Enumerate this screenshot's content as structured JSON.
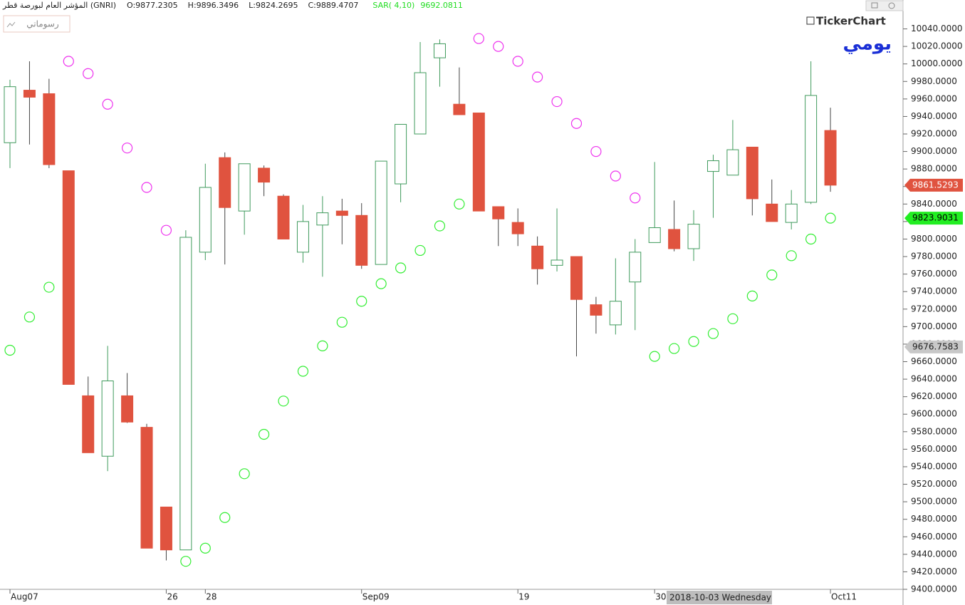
{
  "header": {
    "index_name": "المؤشر العام لبورصة قطر (GNRI)",
    "open_label": "O:",
    "high_label": "H:",
    "low_label": "L:",
    "close_label": "C:"
  },
  "toolbar": {
    "drawings_button": "رسوماتي",
    "logo": "TickerChart",
    "period": "يومي"
  },
  "chart_data": {
    "type": "candlestick",
    "categories": [
      "Aug07",
      null,
      null,
      null,
      null,
      null,
      null,
      null,
      "26",
      null,
      "28",
      null,
      null,
      null,
      null,
      null,
      null,
      null,
      "Sep09",
      null,
      null,
      null,
      null,
      null,
      null,
      null,
      "19",
      null,
      null,
      null,
      null,
      null,
      null,
      "30",
      null,
      null,
      null,
      null,
      null,
      null,
      null,
      null,
      "Oct11"
    ],
    "open": [
      9910,
      9970,
      9966,
      9878,
      9621,
      9552,
      9621,
      9585,
      9494,
      9445,
      9785,
      9893,
      9832,
      9881,
      9849,
      9785,
      9816,
      9832,
      9827,
      9771,
      9863,
      9920,
      10007,
      9954,
      9944,
      9837,
      9819,
      9792,
      9770,
      9780,
      9725,
      9702,
      9751,
      9796,
      9811,
      9789,
      9877.2305,
      9873,
      9905,
      9840,
      9819,
      9842,
      9924
    ],
    "high": [
      9982,
      10003,
      9983,
      9878,
      9643,
      9678,
      9647,
      9589,
      9494,
      9810,
      9886,
      9899,
      9886,
      9884,
      9851,
      9839,
      9849,
      9846,
      9841,
      9889,
      9931,
      10025,
      10028,
      9996,
      9944,
      9837,
      9835,
      9803,
      9835,
      9780,
      9734,
      9778,
      9800,
      9888,
      9844,
      9833,
      9896.3496,
      9936,
      9905,
      9868,
      9856,
      10003,
      9950
    ],
    "low": [
      9881,
      9908,
      9881,
      9634,
      9556,
      9535,
      9590,
      9447,
      9433,
      9445,
      9776,
      9771,
      9805,
      9849,
      9800,
      9773,
      9757,
      9794,
      9766,
      9771,
      9842,
      9920,
      9974,
      9942,
      9832,
      9792,
      9792,
      9748,
      9763,
      9666,
      9692,
      9691,
      9696,
      9796,
      9786,
      9775,
      9824.2695,
      9873,
      9827,
      9820,
      9811,
      9840,
      9854
    ],
    "close": [
      9974,
      9962,
      9885,
      9634,
      9556,
      9638,
      9591,
      9447,
      9445,
      9802,
      9859,
      9836,
      9886,
      9865,
      9800,
      9820,
      9830,
      9827,
      9770,
      9889,
      9931,
      9990,
      10023,
      9942,
      9832,
      9823,
      9806,
      9766,
      9776,
      9731,
      9713,
      9729,
      9785,
      9813,
      9789,
      9817,
      9889.4707,
      9902,
      9846,
      9820,
      9840,
      9964,
      9861.5293
    ],
    "up_color": "#3f9a5c",
    "down_color": "#e0533f",
    "overlay": {
      "type": "scatter",
      "label": "SAR( 4,10)",
      "label_color": "#22dd22",
      "up_color": "#33ee33",
      "down_color": "#ee33ee",
      "values": [
        9673,
        9711,
        9745,
        10003,
        9989,
        9954,
        9904,
        9859,
        9810,
        9432,
        9447,
        9482,
        9532,
        9577,
        9615,
        9649,
        9678,
        9705,
        9729,
        9749,
        9767,
        9787,
        9815,
        9840,
        10029,
        10020,
        10003,
        9985,
        9957,
        9932,
        9900,
        9872,
        9847,
        9666,
        9675,
        9683,
        9692.0811,
        9709,
        9735,
        9759,
        9781,
        9800,
        9823.9031
      ]
    },
    "ylim": [
      9400,
      10073
    ],
    "yticks": [
      {
        "value": 9400,
        "label": "9400.0000"
      },
      {
        "value": 9420,
        "label": "9420.0000"
      },
      {
        "value": 9440,
        "label": "9440.0000"
      },
      {
        "value": 9460,
        "label": "9460.0000"
      },
      {
        "value": 9480,
        "label": "9480.0000"
      },
      {
        "value": 9500,
        "label": "9500.0000"
      },
      {
        "value": 9520,
        "label": "9520.0000"
      },
      {
        "value": 9540,
        "label": "9540.0000"
      },
      {
        "value": 9560,
        "label": "9560.0000"
      },
      {
        "value": 9580,
        "label": "9580.0000"
      },
      {
        "value": 9600,
        "label": "9600.0000"
      },
      {
        "value": 9620,
        "label": "9620.0000"
      },
      {
        "value": 9640,
        "label": "9640.0000"
      },
      {
        "value": 9660,
        "label": "9660.0000"
      },
      {
        "value": 9680,
        "label": "9680.0000"
      },
      {
        "value": 9700,
        "label": "9700.0000"
      },
      {
        "value": 9720,
        "label": "9720.0000"
      },
      {
        "value": 9740,
        "label": "9740.0000"
      },
      {
        "value": 9760,
        "label": "9760.0000"
      },
      {
        "value": 9780,
        "label": "9780.0000"
      },
      {
        "value": 9800,
        "label": "9800.0000"
      },
      {
        "value": 9820,
        "label": "9820.0000"
      },
      {
        "value": 9840,
        "label": "9840.0000"
      },
      {
        "value": 9860,
        "label": "9860.0000"
      },
      {
        "value": 9880,
        "label": "9880.0000"
      },
      {
        "value": 9900,
        "label": "9900.0000"
      },
      {
        "value": 9920,
        "label": "9920.0000"
      },
      {
        "value": 9940,
        "label": "9940.0000"
      },
      {
        "value": 9960,
        "label": "9960.0000"
      },
      {
        "value": 9980,
        "label": "9980.0000"
      },
      {
        "value": 10000,
        "label": "10000.0000"
      },
      {
        "value": 10020,
        "label": "10020.0000"
      },
      {
        "value": 10040,
        "label": "10040.0000"
      }
    ],
    "price_tags": [
      {
        "value": 9861.5293,
        "color": "#e0533f"
      },
      {
        "value": 9823.9031,
        "color": "#22ee22"
      },
      {
        "value": 9676.7583,
        "color": "#c8c8c8"
      }
    ],
    "crosshair_date": "2018-10-03 Wednesday"
  }
}
